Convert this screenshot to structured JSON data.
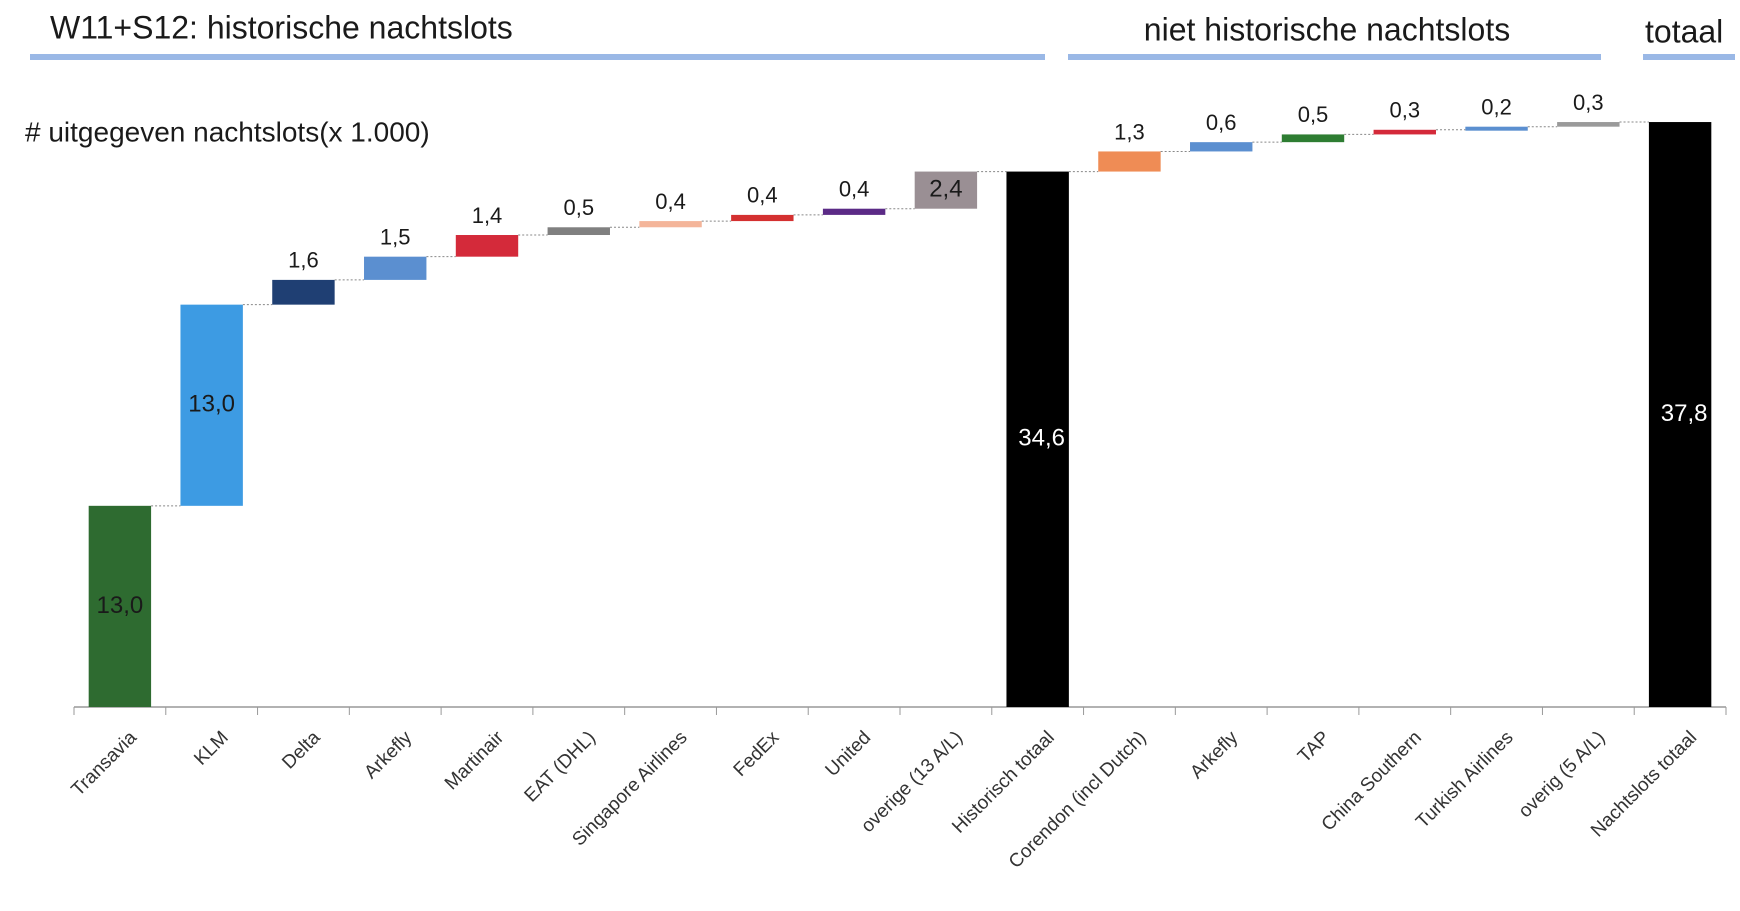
{
  "chart_data": {
    "type": "waterfall",
    "title": "W11+S12: historische nachtslots",
    "subtitle": "niet historische nachtslots",
    "subtitle2": "totaal",
    "y_label": "# uitgegeven nachtslots(x 1.000)",
    "categories": [
      "Transavia",
      "KLM",
      "Delta",
      "Arkefly",
      "Martinair",
      "EAT (DHL)",
      "Singapore Airlines",
      "FedEx",
      "United",
      "overige (13 A/L)",
      "Historisch totaal",
      "Corendon (incl Dutch)",
      "Arkefly",
      "TAP",
      "China Southern",
      "Turkish Airlines",
      "overig (5 A/L)",
      "Nachtslots totaal"
    ],
    "values": [
      13.0,
      13.0,
      1.6,
      1.5,
      1.4,
      0.5,
      0.4,
      0.4,
      0.4,
      2.4,
      34.6,
      1.3,
      0.6,
      0.5,
      0.3,
      0.2,
      0.3,
      37.8
    ],
    "value_labels": [
      "13,0",
      "13,0",
      "1,6",
      "1,5",
      "1,4",
      "0,5",
      "0,4",
      "0,4",
      "0,4",
      "2,4",
      "34,6",
      "1,3",
      "0,6",
      "0,5",
      "0,3",
      "0,2",
      "0,3",
      "37,8"
    ],
    "totals": [
      false,
      false,
      false,
      false,
      false,
      false,
      false,
      false,
      false,
      false,
      true,
      false,
      false,
      false,
      false,
      false,
      false,
      true
    ],
    "colors": [
      "#2e6b30",
      "#3d9be3",
      "#1f3f73",
      "#5b8fd0",
      "#d42a3a",
      "#808080",
      "#f4b59a",
      "#d43030",
      "#5b2a86",
      "#9a8f94",
      "#000000",
      "#ef8c55",
      "#5b8fd0",
      "#2e7d32",
      "#d42a3a",
      "#5b8fd0",
      "#9a9a9a",
      "#000000"
    ],
    "ylim": [
      0,
      40
    ]
  }
}
